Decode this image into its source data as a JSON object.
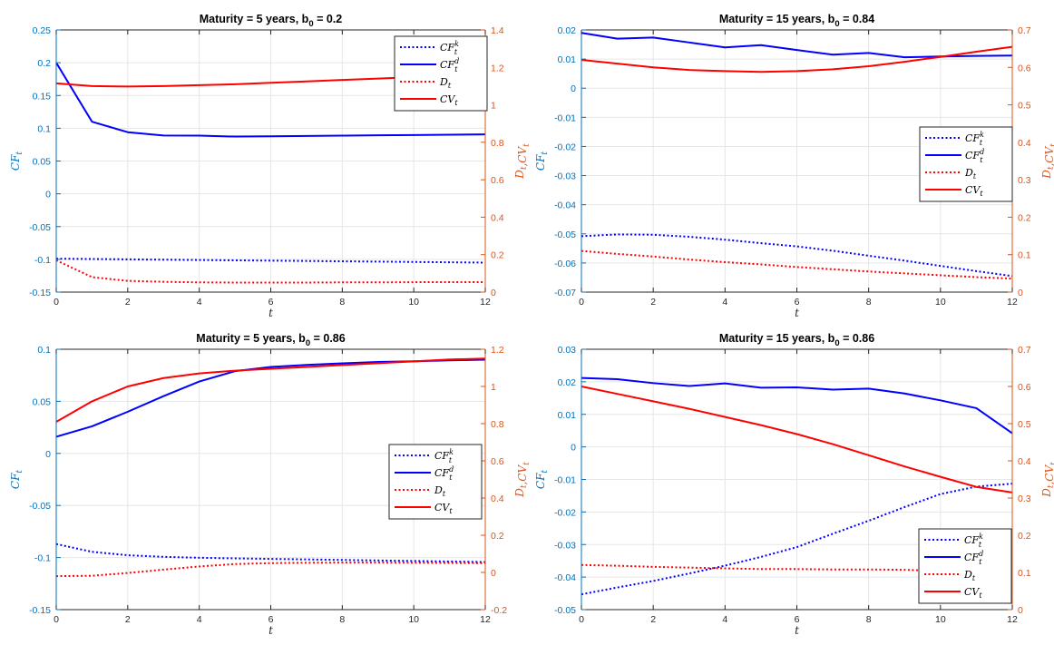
{
  "chart_data": [
    {
      "type": "line",
      "title": "Maturity = 5 years, b",
      "title_sub": "0",
      "title_tail": " = 0.2",
      "xlabel": "t",
      "ylabel_left": "CF",
      "ylabel_left_sub": "t",
      "ylabel_right": "D_t,CV_t",
      "x_ticks": [
        "0",
        "2",
        "4",
        "6",
        "8",
        "10",
        "12"
      ],
      "xlim": [
        0,
        12
      ],
      "ylim_left": [
        -0.15,
        0.25
      ],
      "ylim_right": [
        0,
        1.4
      ],
      "yticks_left": [
        "0.25",
        "0.2",
        "0.15",
        "0.1",
        "0.05",
        "0",
        "-0.05",
        "-0.1",
        "-0.15"
      ],
      "yticks_right": [
        "1.4",
        "1.2",
        "1",
        "0.8",
        "0.6",
        "0.4",
        "0.2",
        "0"
      ],
      "grid": true,
      "legend_position": "top-right",
      "x": [
        0,
        1,
        2,
        3,
        4,
        5,
        6,
        7,
        8,
        9,
        10,
        11,
        12
      ],
      "series": [
        {
          "name": "CF_t^k",
          "axis": "left",
          "style": "dotted",
          "color": "#0000ff",
          "values": [
            -0.099,
            -0.0995,
            -0.1,
            -0.1005,
            -0.101,
            -0.1015,
            -0.102,
            -0.1025,
            -0.103,
            -0.1035,
            -0.104,
            -0.1045,
            -0.105
          ]
        },
        {
          "name": "CF_t^d",
          "axis": "left",
          "style": "solid",
          "color": "#0000ff",
          "values": [
            0.2,
            0.11,
            0.094,
            0.089,
            0.0888,
            0.0873,
            0.0877,
            0.0882,
            0.0887,
            0.0892,
            0.0897,
            0.0902,
            0.0907
          ]
        },
        {
          "name": "D_t",
          "axis": "right",
          "style": "dotted",
          "color": "#ff0000",
          "values": [
            0.17,
            0.08,
            0.06,
            0.055,
            0.052,
            0.051,
            0.051,
            0.051,
            0.052,
            0.052,
            0.053,
            0.053,
            0.053
          ]
        },
        {
          "name": "CV_t",
          "axis": "right",
          "style": "solid",
          "color": "#ff0000",
          "values": [
            1.115,
            1.1,
            1.098,
            1.1,
            1.105,
            1.11,
            1.118,
            1.125,
            1.133,
            1.14,
            1.148,
            1.155,
            1.163
          ]
        }
      ]
    },
    {
      "type": "line",
      "title": "Maturity = 15 years, b",
      "title_sub": "0",
      "title_tail": " = 0.84",
      "xlabel": "t",
      "ylabel_left": "CF",
      "ylabel_left_sub": "t",
      "ylabel_right": "D_t,CV_t",
      "x_ticks": [
        "0",
        "2",
        "4",
        "6",
        "8",
        "10",
        "12"
      ],
      "xlim": [
        0,
        12
      ],
      "ylim_left": [
        -0.07,
        0.02
      ],
      "ylim_right": [
        0,
        0.7
      ],
      "yticks_left": [
        "0.02",
        "0.01",
        "0",
        "-0.01",
        "-0.02",
        "-0.03",
        "-0.04",
        "-0.05",
        "-0.06",
        "-0.07"
      ],
      "yticks_right": [
        "0.7",
        "0.6",
        "0.5",
        "0.4",
        "0.3",
        "0.2",
        "0.1",
        "0"
      ],
      "grid": true,
      "legend_position": "right",
      "x": [
        0,
        1,
        2,
        3,
        4,
        5,
        6,
        7,
        8,
        9,
        10,
        11,
        12
      ],
      "series": [
        {
          "name": "CF_t^k",
          "axis": "left",
          "style": "dotted",
          "color": "#0000ff",
          "values": [
            -0.0508,
            -0.0502,
            -0.0503,
            -0.051,
            -0.052,
            -0.0532,
            -0.0543,
            -0.0558,
            -0.0575,
            -0.0592,
            -0.061,
            -0.0628,
            -0.0645
          ]
        },
        {
          "name": "CF_t^d",
          "axis": "left",
          "style": "solid",
          "color": "#0000ff",
          "values": [
            0.019,
            0.017,
            0.0174,
            0.0157,
            0.014,
            0.0148,
            0.0131,
            0.0115,
            0.0121,
            0.0106,
            0.0109,
            0.0111,
            0.0112
          ]
        },
        {
          "name": "D_t",
          "axis": "right",
          "style": "dotted",
          "color": "#ff0000",
          "values": [
            0.11,
            0.102,
            0.095,
            0.087,
            0.08,
            0.074,
            0.067,
            0.061,
            0.055,
            0.05,
            0.045,
            0.04,
            0.036
          ]
        },
        {
          "name": "CV_t",
          "axis": "right",
          "style": "solid",
          "color": "#ff0000",
          "values": [
            0.62,
            0.61,
            0.6,
            0.593,
            0.59,
            0.588,
            0.59,
            0.595,
            0.603,
            0.615,
            0.628,
            0.642,
            0.655
          ]
        }
      ]
    },
    {
      "type": "line",
      "title": "Maturity = 5 years, b",
      "title_sub": "0",
      "title_tail": " = 0.86",
      "xlabel": "t",
      "ylabel_left": "CF",
      "ylabel_left_sub": "t",
      "ylabel_right": "D_t,CV_t",
      "x_ticks": [
        "0",
        "2",
        "4",
        "6",
        "8",
        "10",
        "12"
      ],
      "xlim": [
        0,
        12
      ],
      "ylim_left": [
        -0.15,
        0.1
      ],
      "ylim_right": [
        -0.2,
        1.2
      ],
      "yticks_left": [
        "0.1",
        "0.05",
        "0",
        "-0.05",
        "-0.1",
        "-0.15"
      ],
      "yticks_right": [
        "1.2",
        "1",
        "0.8",
        "0.6",
        "0.4",
        "0.2",
        "0",
        "-0.2"
      ],
      "grid": true,
      "legend_position": "right",
      "x": [
        0,
        1,
        2,
        3,
        4,
        5,
        6,
        7,
        8,
        9,
        10,
        11,
        12
      ],
      "series": [
        {
          "name": "CF_t^k",
          "axis": "left",
          "style": "dotted",
          "color": "#0000ff",
          "values": [
            -0.087,
            -0.0945,
            -0.0978,
            -0.0993,
            -0.1002,
            -0.1008,
            -0.1013,
            -0.1018,
            -0.1023,
            -0.1028,
            -0.1033,
            -0.1038,
            -0.1043
          ]
        },
        {
          "name": "CF_t^d",
          "axis": "left",
          "style": "solid",
          "color": "#0000ff",
          "values": [
            0.016,
            0.026,
            0.04,
            0.055,
            0.069,
            0.079,
            0.083,
            0.085,
            0.0865,
            0.0878,
            0.0885,
            0.0893,
            0.09
          ]
        },
        {
          "name": "D_t",
          "axis": "right",
          "style": "dotted",
          "color": "#ff0000",
          "values": [
            -0.02,
            -0.018,
            -0.003,
            0.015,
            0.032,
            0.045,
            0.05,
            0.052,
            0.053,
            0.053,
            0.052,
            0.051,
            0.05
          ]
        },
        {
          "name": "CV_t",
          "axis": "right",
          "style": "solid",
          "color": "#ff0000",
          "values": [
            0.81,
            0.92,
            1.0,
            1.045,
            1.07,
            1.085,
            1.095,
            1.105,
            1.115,
            1.125,
            1.135,
            1.145,
            1.15
          ]
        }
      ]
    },
    {
      "type": "line",
      "title": "Maturity = 15 years, b",
      "title_sub": "0",
      "title_tail": " = 0.86",
      "xlabel": "t",
      "ylabel_left": "CF",
      "ylabel_left_sub": "t",
      "ylabel_right": "D_t,CV_t",
      "x_ticks": [
        "0",
        "2",
        "4",
        "6",
        "8",
        "10",
        "12"
      ],
      "xlim": [
        0,
        12
      ],
      "ylim_left": [
        -0.05,
        0.03
      ],
      "ylim_right": [
        0,
        0.7
      ],
      "yticks_left": [
        "0.03",
        "0.02",
        "0.01",
        "0",
        "-0.01",
        "-0.02",
        "-0.03",
        "-0.04",
        "-0.05"
      ],
      "yticks_right": [
        "0.7",
        "0.6",
        "0.5",
        "0.4",
        "0.3",
        "0.2",
        "0.1",
        "0"
      ],
      "grid": true,
      "legend_position": "bottom-right",
      "x": [
        0,
        1,
        2,
        3,
        4,
        5,
        6,
        7,
        8,
        9,
        10,
        11,
        12
      ],
      "series": [
        {
          "name": "CF_t^k",
          "axis": "left",
          "style": "dotted",
          "color": "#0000ff",
          "values": [
            -0.0453,
            -0.0432,
            -0.0412,
            -0.0389,
            -0.0365,
            -0.0338,
            -0.0308,
            -0.0267,
            -0.0227,
            -0.0185,
            -0.0145,
            -0.0122,
            -0.0113
          ]
        },
        {
          "name": "CF_t^d",
          "axis": "left",
          "style": "solid",
          "color": "#0000ff",
          "values": [
            0.0212,
            0.0208,
            0.0196,
            0.0187,
            0.0195,
            0.0182,
            0.0183,
            0.0176,
            0.0179,
            0.0164,
            0.0143,
            0.0119,
            0.0042
          ]
        },
        {
          "name": "D_t",
          "axis": "right",
          "style": "dotted",
          "color": "#ff0000",
          "values": [
            0.12,
            0.118,
            0.115,
            0.113,
            0.111,
            0.109,
            0.109,
            0.108,
            0.108,
            0.107,
            0.104,
            0.102,
            0.1
          ]
        },
        {
          "name": "CV_t",
          "axis": "right",
          "style": "solid",
          "color": "#ff0000",
          "values": [
            0.6,
            0.58,
            0.56,
            0.54,
            0.518,
            0.496,
            0.472,
            0.445,
            0.415,
            0.385,
            0.357,
            0.33,
            0.315
          ]
        }
      ]
    }
  ]
}
